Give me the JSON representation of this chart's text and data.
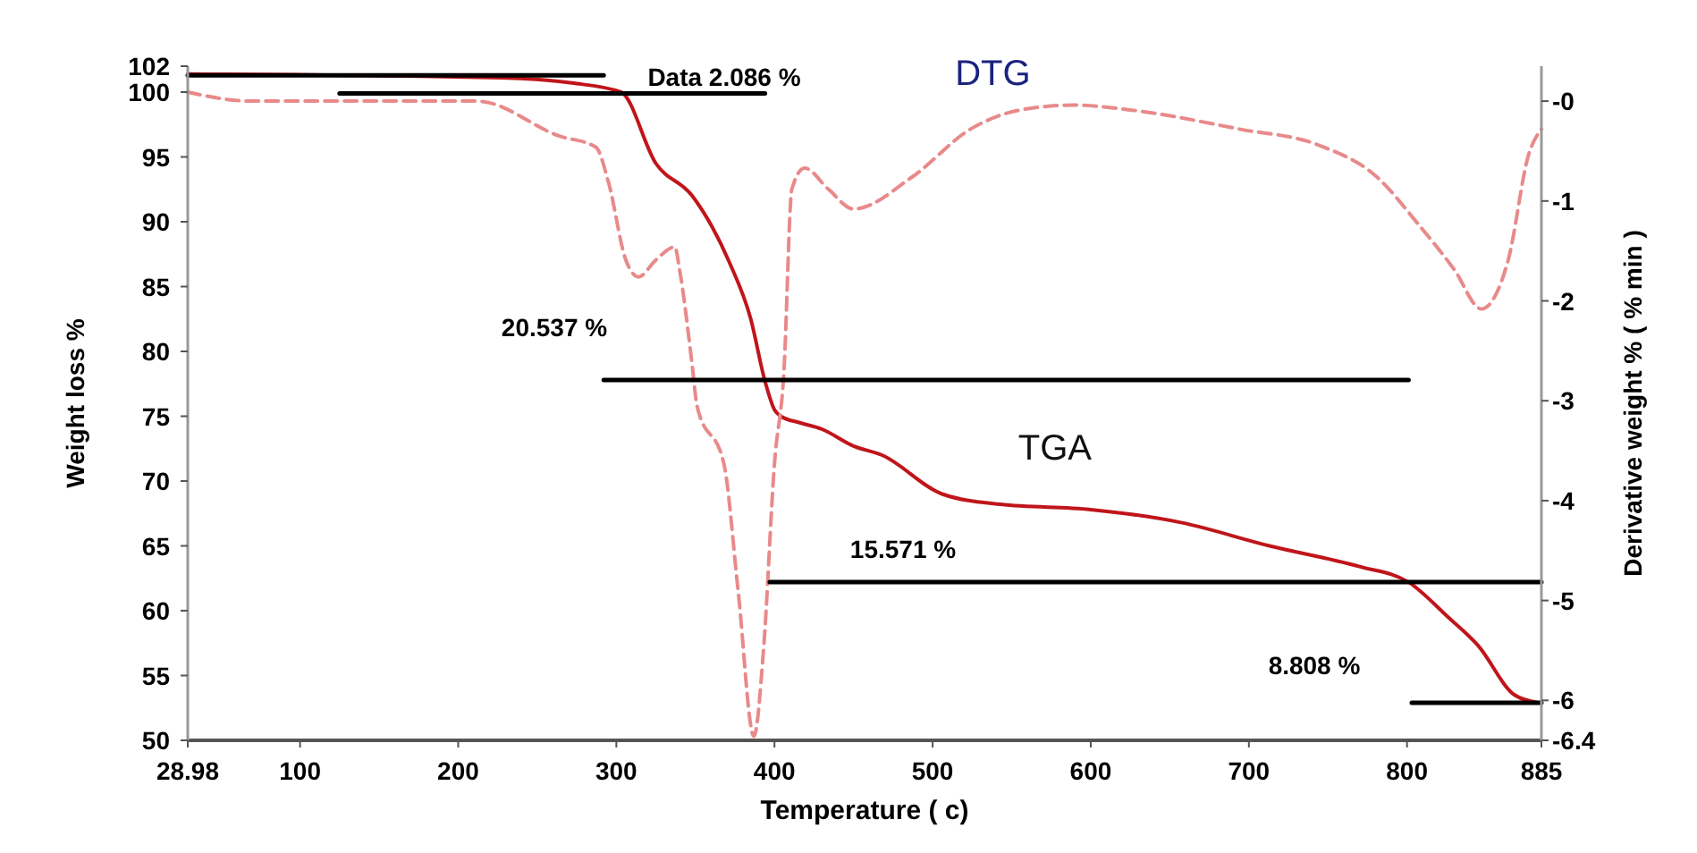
{
  "chart_data": {
    "type": "line",
    "xlabel": "Temperature ( c)",
    "ylabel": "Weight loss %",
    "y2label": "Derivative weight % ( % min )",
    "xlim": [
      28.98,
      885
    ],
    "xticks": [
      28.98,
      100,
      200,
      300,
      400,
      500,
      600,
      700,
      800,
      885
    ],
    "ylim": [
      50,
      102
    ],
    "yticks": [
      50,
      55,
      60,
      65,
      70,
      75,
      80,
      85,
      90,
      95,
      100,
      102
    ],
    "y2lim": [
      -6.4,
      0.35
    ],
    "y2ticks": [
      {
        "value": 0,
        "label": "-0"
      },
      -1,
      -2,
      -3,
      -4,
      -5,
      -6,
      -6.4
    ],
    "grid": false,
    "marker": "none",
    "series": [
      {
        "name": "TGA",
        "color": "#c0151a",
        "line_style": "solid",
        "x": [
          29,
          227,
          272,
          303,
          325,
          348,
          371,
          385,
          394,
          400,
          404,
          416,
          430,
          450,
          468,
          506,
          543,
          600,
          657,
          713,
          770,
          801,
          826,
          845,
          868,
          883
        ],
        "values": [
          101.4,
          101.1,
          100.7,
          100,
          94.5,
          92,
          87,
          82.5,
          77.7,
          75.5,
          75,
          74.5,
          74,
          72.7,
          72,
          69,
          68.2,
          67.8,
          66.8,
          65,
          63.4,
          62.2,
          59.5,
          57.3,
          53.5,
          52.9
        ]
      },
      {
        "name": "DTG",
        "color": "#e88a8a",
        "line_style": "dashed",
        "axis": "y2",
        "x": [
          29,
          69,
          212,
          264,
          287,
          295,
          306,
          314,
          325,
          337,
          340,
          348,
          351,
          368,
          377,
          387,
          393,
          400,
          406,
          411,
          419,
          434,
          450,
          487,
          524,
          555,
          589,
          626,
          694,
          744,
          781,
          807,
          830,
          847,
          864,
          877,
          885
        ],
        "values": [
          0.09,
          0,
          0,
          -0.35,
          -0.46,
          -0.81,
          -1.59,
          -1.76,
          -1.59,
          -1.46,
          -1.69,
          -2.65,
          -3.05,
          -3.63,
          -4.9,
          -6.36,
          -5.51,
          -3.63,
          -2.7,
          -0.88,
          -0.67,
          -0.88,
          -1.08,
          -0.76,
          -0.28,
          -0.09,
          -0.04,
          -0.09,
          -0.28,
          -0.44,
          -0.76,
          -1.23,
          -1.69,
          -2.08,
          -1.59,
          -0.53,
          -0.28
        ]
      },
      {
        "color": "#000000",
        "line_style": "solid",
        "x": [
          29,
          292
        ],
        "values": [
          101.3,
          101.3
        ]
      },
      {
        "color": "#000000",
        "line_style": "solid",
        "x": [
          125,
          394
        ],
        "values": [
          99.9,
          99.9
        ]
      },
      {
        "color": "#000000",
        "line_style": "solid",
        "x": [
          292,
          801
        ],
        "values": [
          77.8,
          77.8
        ]
      },
      {
        "color": "#000000",
        "line_style": "solid",
        "x": [
          397,
          885
        ],
        "values": [
          62.2,
          62.2
        ]
      },
      {
        "color": "#000000",
        "line_style": "solid",
        "x": [
          803,
          885
        ],
        "values": [
          52.9,
          52.9
        ]
      }
    ],
    "annotations": [
      "Data 2.086 %",
      "20.537 %",
      "15.571 %",
      "8.808 %"
    ]
  }
}
